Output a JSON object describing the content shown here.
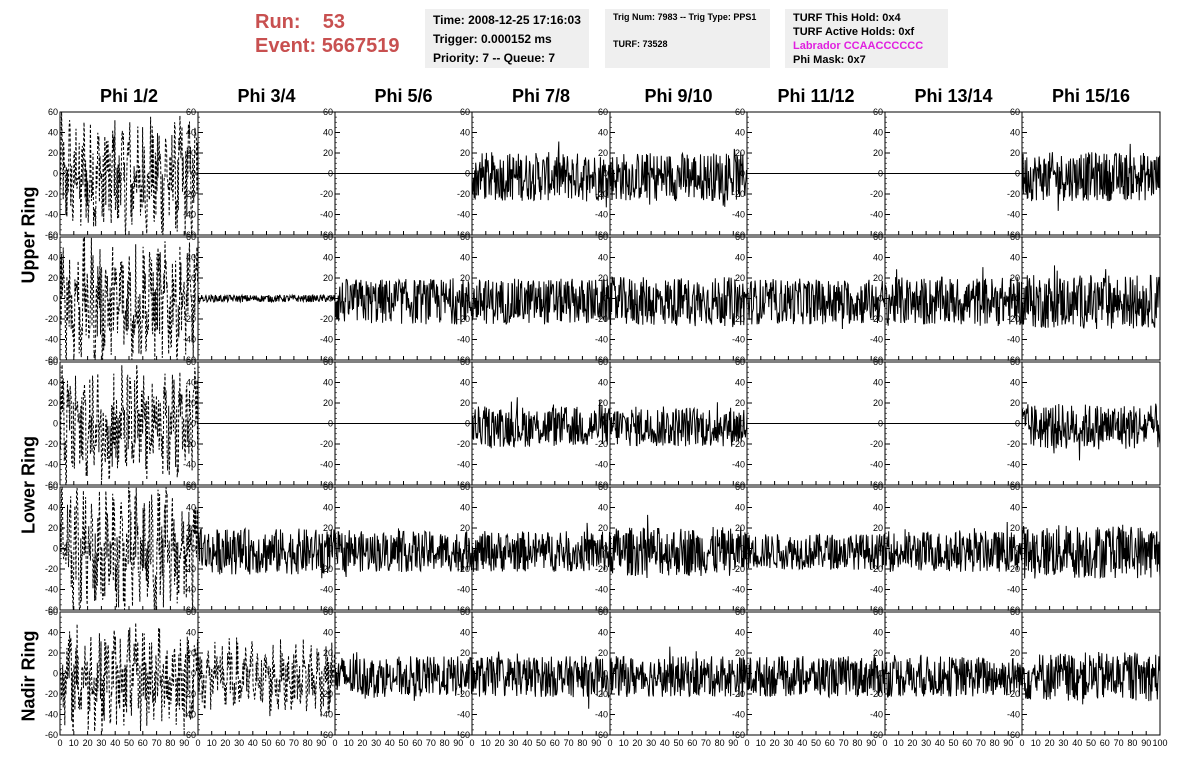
{
  "header": {
    "run_label": "Run:",
    "run_value": "53",
    "event_label": "Event:",
    "event_value": "5667519",
    "time": "Time: 2008-12-25 17:16:03",
    "trigger": "Trigger: 0.000152 ms",
    "priority": "Priority: 7 -- Queue: 7",
    "trig_num": "Trig Num: 7983 -- Trig Type: PPS1",
    "turf": "TURF: 73528",
    "turf_this_hold": "TURF This Hold: 0x4",
    "turf_active_holds": "TURF Active Holds: 0xf",
    "labrador": "Labrador CCAACCCCCC",
    "phi_mask": "Phi Mask: 0x7"
  },
  "colors": {
    "header_red": "#c85050",
    "labrador_magenta": "#e020e0",
    "box_bg": "#efefef",
    "trace": "#000000"
  },
  "column_titles": [
    "Phi 1/2",
    "Phi 3/4",
    "Phi 5/6",
    "Phi 7/8",
    "Phi 9/10",
    "Phi 11/12",
    "Phi 13/14",
    "Phi 15/16"
  ],
  "ring_titles": [
    "Upper Ring",
    "Lower Ring",
    "Nadir Ring"
  ],
  "chart_data": {
    "type": "line",
    "layout": "grid 5 rows x 8 columns of waveform panels",
    "ylim": [
      -60,
      60
    ],
    "yticks": [
      -60,
      -40,
      -20,
      0,
      20,
      40,
      60
    ],
    "xlim": [
      0,
      100
    ],
    "xticks": [
      0,
      10,
      20,
      30,
      40,
      50,
      60,
      70,
      80,
      90,
      100
    ],
    "bottom_tick_labels": [
      "0",
      "10",
      "20",
      "30",
      "40",
      "50",
      "60",
      "70",
      "80",
      "90",
      "100"
    ],
    "grid": false,
    "panel_style_rows": [
      [
        "dashed",
        "flat",
        "flat",
        "noise",
        "noise",
        "flat",
        "flat",
        "noise"
      ],
      [
        "dashed",
        "small",
        "noise",
        "noise",
        "noise",
        "noise",
        "noise",
        "noise"
      ],
      [
        "dashed",
        "flat",
        "flat",
        "noise",
        "noise",
        "flat",
        "flat",
        "noise"
      ],
      [
        "dashed",
        "noise",
        "noise",
        "noise",
        "noise",
        "noise",
        "noise",
        "noise"
      ],
      [
        "dashed",
        "dashed",
        "noise",
        "noise",
        "noise",
        "noise",
        "noise",
        "noise"
      ]
    ],
    "panel_amplitude_rows": [
      [
        55,
        0,
        0,
        30,
        30,
        0,
        0,
        30
      ],
      [
        55,
        5,
        28,
        28,
        30,
        28,
        30,
        33
      ],
      [
        55,
        0,
        0,
        25,
        25,
        0,
        0,
        28
      ],
      [
        55,
        28,
        25,
        25,
        30,
        22,
        25,
        33
      ],
      [
        45,
        32,
        25,
        25,
        25,
        25,
        25,
        30
      ]
    ]
  }
}
